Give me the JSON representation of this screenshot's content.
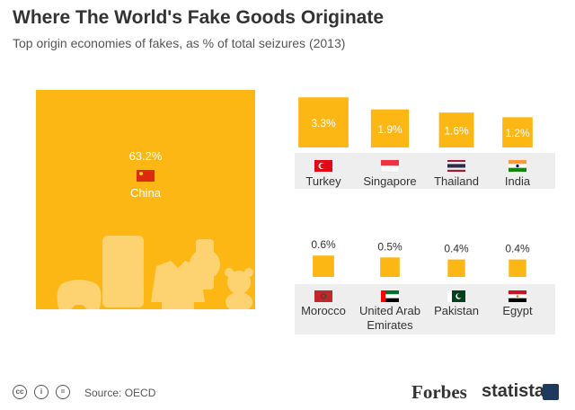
{
  "title": "Where The World's Fake Goods Originate",
  "subtitle": "Top origin economies of fakes, as % of total seizures (2013)",
  "source": "Source: OECD",
  "brands": {
    "forbes": "Forbes",
    "statista": "statista"
  },
  "license_icons": [
    "cc",
    "by",
    "nd"
  ],
  "colors": {
    "accent": "#fdb714",
    "label_bg": "#eeeeee",
    "text": "#333333"
  },
  "chart_data": {
    "type": "bar",
    "unit": "%",
    "title": "Where The World's Fake Goods Originate",
    "subtitle": "Top origin economies of fakes, as % of total seizures (2013)",
    "categories": [
      "China",
      "Turkey",
      "Singapore",
      "Thailand",
      "India",
      "Morocco",
      "United Arab Emirates",
      "Pakistan",
      "Egypt"
    ],
    "values": [
      63.2,
      3.3,
      1.9,
      1.6,
      1.2,
      0.6,
      0.5,
      0.4,
      0.4
    ],
    "labels": [
      "63.2%",
      "3.3%",
      "1.9%",
      "1.6%",
      "1.2%",
      "0.6%",
      "0.5%",
      "0.4%",
      "0.4%"
    ],
    "flag_icons": [
      "china-flag-icon",
      "turkey-flag-icon",
      "singapore-flag-icon",
      "thailand-flag-icon",
      "india-flag-icon",
      "morocco-flag-icon",
      "uae-flag-icon",
      "pakistan-flag-icon",
      "egypt-flag-icon"
    ],
    "decorations": [
      "gamepad-icon",
      "smartphone-icon",
      "jacket-icon",
      "watch-icon",
      "teddy-bear-icon"
    ]
  }
}
